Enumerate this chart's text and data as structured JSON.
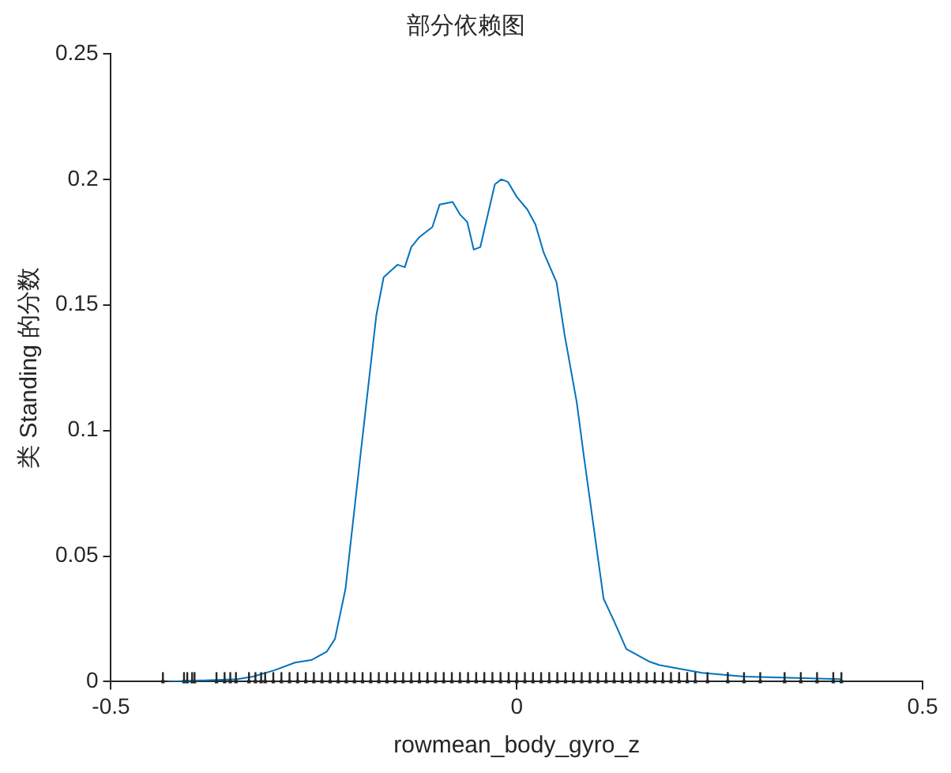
{
  "chart_data": {
    "type": "line",
    "title": "部分依赖图",
    "xlabel": "rowmean_body_gyro_z",
    "ylabel": "类 Standing 的分数",
    "xlim": [
      -0.5,
      0.5
    ],
    "xticks": [
      -0.5,
      0,
      0.5
    ],
    "ylim": [
      0,
      0.25
    ],
    "yticks": [
      0,
      0.05,
      0.1,
      0.15,
      0.2,
      0.25
    ],
    "grid": false,
    "legend": false,
    "series": [
      {
        "color": "#0072bd",
        "marker": "none",
        "x": [
          -0.43,
          -0.344,
          -0.325,
          -0.299,
          -0.273,
          -0.253,
          -0.234,
          -0.224,
          -0.211,
          -0.193,
          -0.173,
          -0.164,
          -0.147,
          -0.138,
          -0.13,
          -0.12,
          -0.104,
          -0.095,
          -0.079,
          -0.07,
          -0.061,
          -0.053,
          -0.045,
          -0.027,
          -0.019,
          -0.011,
          0,
          0.013,
          0.023,
          0.033,
          0.049,
          0.059,
          0.074,
          0.083,
          0.107,
          0.12,
          0.135,
          0.163,
          0.176,
          0.228,
          0.28,
          0.4
        ],
        "values": [
          0,
          0.001,
          0.002,
          0.0045,
          0.0076,
          0.0086,
          0.012,
          0.017,
          0.037,
          0.089,
          0.146,
          0.161,
          0.166,
          0.165,
          0.173,
          0.177,
          0.181,
          0.19,
          0.191,
          0.186,
          0.183,
          0.172,
          0.173,
          0.198,
          0.2,
          0.199,
          0.193,
          0.188,
          0.182,
          0.171,
          0.159,
          0.138,
          0.111,
          0.089,
          0.033,
          0.024,
          0.013,
          0.008,
          0.0066,
          0.0035,
          0.002,
          0.001
        ]
      },
      {
        "type": "scatter",
        "color": "#262626",
        "x": [
          -0.436,
          -0.41,
          -0.406,
          -0.4,
          -0.397,
          -0.37,
          -0.36,
          -0.353,
          -0.346,
          -0.33,
          -0.322,
          -0.315,
          -0.31,
          -0.3,
          -0.29,
          -0.28,
          -0.27,
          -0.26,
          -0.25,
          -0.24,
          -0.23,
          -0.22,
          -0.21,
          -0.2,
          -0.19,
          -0.18,
          -0.17,
          -0.16,
          -0.15,
          -0.14,
          -0.13,
          -0.12,
          -0.11,
          -0.1,
          -0.09,
          -0.08,
          -0.07,
          -0.06,
          -0.05,
          -0.04,
          -0.03,
          -0.02,
          -0.01,
          0,
          0.01,
          0.02,
          0.03,
          0.04,
          0.05,
          0.06,
          0.07,
          0.08,
          0.09,
          0.1,
          0.11,
          0.12,
          0.13,
          0.14,
          0.15,
          0.16,
          0.17,
          0.18,
          0.19,
          0.2,
          0.21,
          0.22,
          0.235,
          0.26,
          0.28,
          0.3,
          0.33,
          0.35,
          0.37,
          0.39,
          0.4
        ],
        "values": [
          0,
          0,
          0,
          0,
          0,
          0,
          0,
          0,
          0,
          0,
          0,
          0,
          0,
          0,
          0,
          0,
          0,
          0,
          0,
          0,
          0,
          0,
          0,
          0,
          0,
          0,
          0,
          0,
          0,
          0,
          0,
          0,
          0,
          0,
          0,
          0,
          0,
          0,
          0,
          0,
          0,
          0,
          0,
          0,
          0,
          0,
          0,
          0,
          0,
          0,
          0,
          0,
          0,
          0,
          0,
          0,
          0,
          0,
          0,
          0,
          0,
          0,
          0,
          0,
          0,
          0,
          0,
          0,
          0,
          0,
          0,
          0,
          0,
          0,
          0
        ]
      }
    ]
  }
}
